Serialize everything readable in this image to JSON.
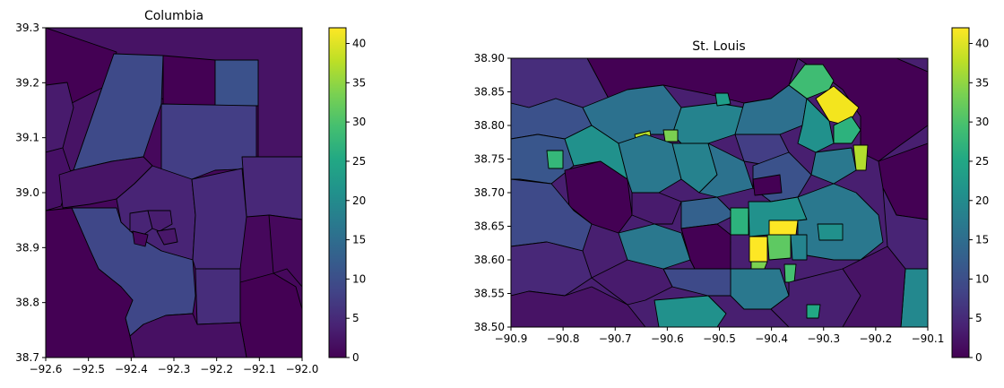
{
  "chart_data": [
    {
      "type": "choropleth",
      "title": "Columbia",
      "xlim": [
        -92.6,
        -92.0
      ],
      "ylim": [
        38.7,
        39.3
      ],
      "xticks": [
        "−92.6",
        "−92.5",
        "−92.4",
        "−92.3",
        "−92.2",
        "−92.1",
        "−92.0"
      ],
      "yticks": [
        "38.7",
        "38.8",
        "38.9",
        "39.0",
        "39.1",
        "39.2",
        "39.3"
      ],
      "colorbar": {
        "range": [
          0,
          42
        ],
        "ticks": [
          "0",
          "5",
          "10",
          "15",
          "20",
          "25",
          "30",
          "35",
          "40"
        ]
      },
      "colormap": "viridis"
    },
    {
      "type": "choropleth",
      "title": "St. Louis",
      "xlim": [
        -90.9,
        -90.1
      ],
      "ylim": [
        38.5,
        38.9
      ],
      "xticks": [
        "−90.9",
        "−90.8",
        "−90.7",
        "−90.6",
        "−90.5",
        "−90.4",
        "−90.3",
        "−90.2",
        "−90.1"
      ],
      "yticks": [
        "38.50",
        "38.55",
        "38.60",
        "38.65",
        "38.70",
        "38.75",
        "38.80",
        "38.85",
        "38.90"
      ],
      "colorbar": {
        "range": [
          0,
          42
        ],
        "ticks": [
          "0",
          "5",
          "10",
          "15",
          "20",
          "25",
          "30",
          "35",
          "40"
        ]
      },
      "colormap": "viridis"
    }
  ]
}
